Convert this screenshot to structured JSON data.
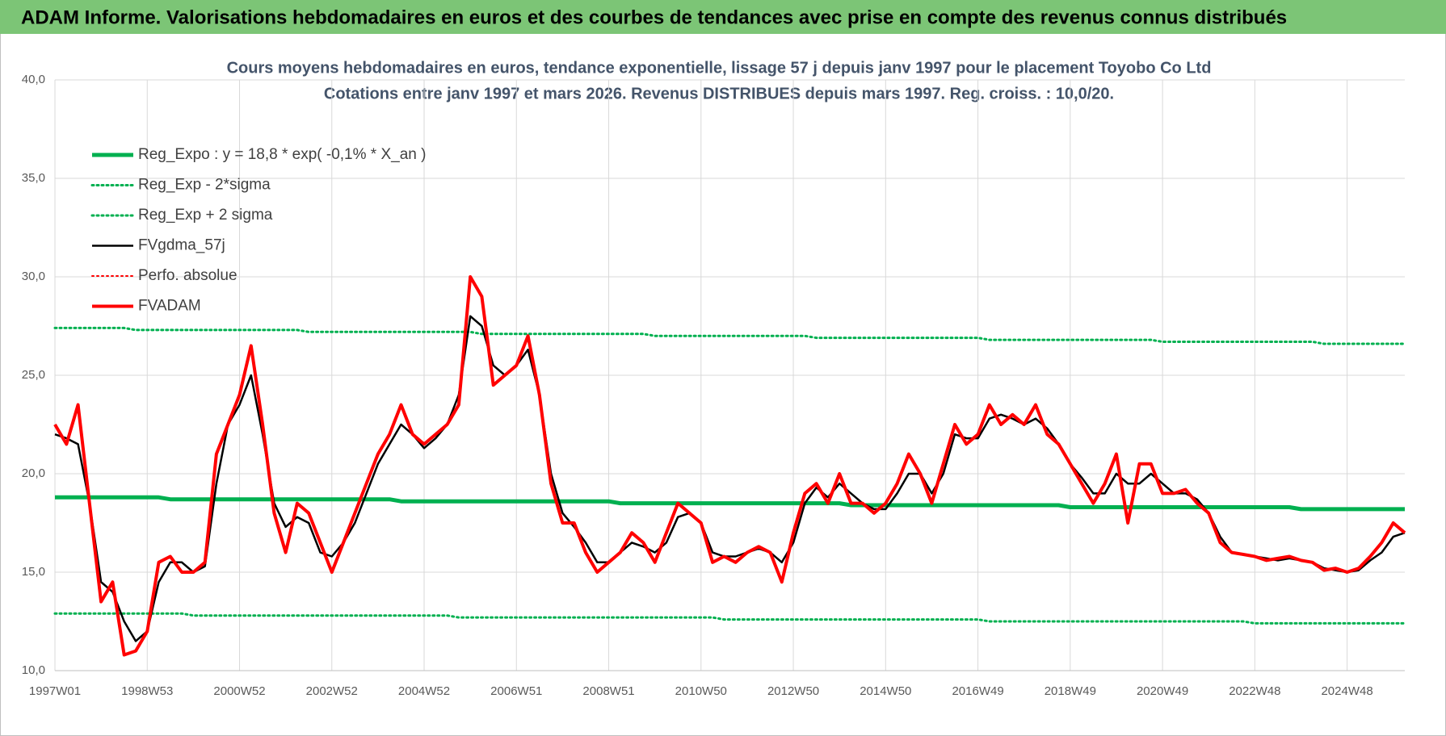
{
  "header": {
    "title": "ADAM Informe. Valorisations hebdomadaires en euros et des courbes de tendances avec prise en compte des revenus connus distribués"
  },
  "chart_data": {
    "type": "line",
    "title": "Cours moyens hebdomadaires en euros, tendance exponentielle, lissage 57 j depuis janv 1997  pour le placement Toyobo Co Ltd",
    "subtitle": "Cotations entre janv 1997 et mars 2026. Revenus DISTRIBUES depuis mars 1997. Reg. croiss. : 10,0/20.",
    "categories": [
      "1997W01",
      null,
      null,
      null,
      null,
      null,
      null,
      null,
      "1998W53",
      null,
      null,
      null,
      null,
      null,
      null,
      null,
      "2000W52",
      null,
      null,
      null,
      null,
      null,
      null,
      null,
      "2002W52",
      null,
      null,
      null,
      null,
      null,
      null,
      null,
      "2004W52",
      null,
      null,
      null,
      null,
      null,
      null,
      null,
      "2006W51",
      null,
      null,
      null,
      null,
      null,
      null,
      null,
      "2008W51",
      null,
      null,
      null,
      null,
      null,
      null,
      null,
      "2010W50",
      null,
      null,
      null,
      null,
      null,
      null,
      null,
      "2012W50",
      null,
      null,
      null,
      null,
      null,
      null,
      null,
      "2014W50",
      null,
      null,
      null,
      null,
      null,
      null,
      null,
      "2016W49",
      null,
      null,
      null,
      null,
      null,
      null,
      null,
      "2018W49",
      null,
      null,
      null,
      null,
      null,
      null,
      null,
      "2020W49",
      null,
      null,
      null,
      null,
      null,
      null,
      null,
      "2022W48",
      null,
      null,
      null,
      null,
      null,
      null,
      null,
      "2024W48",
      null,
      null,
      null,
      null,
      null
    ],
    "ylim": [
      10,
      40
    ],
    "yticks": [
      {
        "value": 10,
        "label": "10,0"
      },
      {
        "value": 15,
        "label": "15,0"
      },
      {
        "value": 20,
        "label": "20,0"
      },
      {
        "value": 25,
        "label": "25,0"
      },
      {
        "value": 30,
        "label": "30,0"
      },
      {
        "value": 35,
        "label": "35,0"
      },
      {
        "value": 40,
        "label": "40,0"
      }
    ],
    "grid": true,
    "legend": "upper left",
    "series": [
      {
        "name": "Reg_Expo : y = 18,8 * exp( -0,1% *  X_an )",
        "color": "#00b050",
        "width": 5,
        "dash": "solid",
        "values": [
          18.8,
          18.8,
          18.8,
          18.8,
          18.8,
          18.8,
          18.8,
          18.8,
          18.8,
          18.8,
          18.7,
          18.7,
          18.7,
          18.7,
          18.7,
          18.7,
          18.7,
          18.7,
          18.7,
          18.7,
          18.7,
          18.7,
          18.7,
          18.7,
          18.7,
          18.7,
          18.7,
          18.7,
          18.7,
          18.7,
          18.6,
          18.6,
          18.6,
          18.6,
          18.6,
          18.6,
          18.6,
          18.6,
          18.6,
          18.6,
          18.6,
          18.6,
          18.6,
          18.6,
          18.6,
          18.6,
          18.6,
          18.6,
          18.6,
          18.5,
          18.5,
          18.5,
          18.5,
          18.5,
          18.5,
          18.5,
          18.5,
          18.5,
          18.5,
          18.5,
          18.5,
          18.5,
          18.5,
          18.5,
          18.5,
          18.5,
          18.5,
          18.5,
          18.5,
          18.4,
          18.4,
          18.4,
          18.4,
          18.4,
          18.4,
          18.4,
          18.4,
          18.4,
          18.4,
          18.4,
          18.4,
          18.4,
          18.4,
          18.4,
          18.4,
          18.4,
          18.4,
          18.4,
          18.3,
          18.3,
          18.3,
          18.3,
          18.3,
          18.3,
          18.3,
          18.3,
          18.3,
          18.3,
          18.3,
          18.3,
          18.3,
          18.3,
          18.3,
          18.3,
          18.3,
          18.3,
          18.3,
          18.3,
          18.2,
          18.2,
          18.2,
          18.2,
          18.2,
          18.2,
          18.2,
          18.2,
          18.2,
          18.2
        ]
      },
      {
        "name": "Reg_Exp - 2*sigma",
        "color": "#00b050",
        "width": 3,
        "dash": "dotted",
        "values": [
          12.9,
          12.9,
          12.9,
          12.9,
          12.9,
          12.9,
          12.9,
          12.9,
          12.9,
          12.9,
          12.9,
          12.9,
          12.8,
          12.8,
          12.8,
          12.8,
          12.8,
          12.8,
          12.8,
          12.8,
          12.8,
          12.8,
          12.8,
          12.8,
          12.8,
          12.8,
          12.8,
          12.8,
          12.8,
          12.8,
          12.8,
          12.8,
          12.8,
          12.8,
          12.8,
          12.7,
          12.7,
          12.7,
          12.7,
          12.7,
          12.7,
          12.7,
          12.7,
          12.7,
          12.7,
          12.7,
          12.7,
          12.7,
          12.7,
          12.7,
          12.7,
          12.7,
          12.7,
          12.7,
          12.7,
          12.7,
          12.7,
          12.7,
          12.6,
          12.6,
          12.6,
          12.6,
          12.6,
          12.6,
          12.6,
          12.6,
          12.6,
          12.6,
          12.6,
          12.6,
          12.6,
          12.6,
          12.6,
          12.6,
          12.6,
          12.6,
          12.6,
          12.6,
          12.6,
          12.6,
          12.6,
          12.5,
          12.5,
          12.5,
          12.5,
          12.5,
          12.5,
          12.5,
          12.5,
          12.5,
          12.5,
          12.5,
          12.5,
          12.5,
          12.5,
          12.5,
          12.5,
          12.5,
          12.5,
          12.5,
          12.5,
          12.5,
          12.5,
          12.5,
          12.4,
          12.4,
          12.4,
          12.4,
          12.4,
          12.4,
          12.4,
          12.4,
          12.4,
          12.4,
          12.4,
          12.4,
          12.4,
          12.4
        ]
      },
      {
        "name": "Reg_Exp + 2 sigma",
        "color": "#00b050",
        "width": 3,
        "dash": "dotted",
        "values": [
          27.4,
          27.4,
          27.4,
          27.4,
          27.4,
          27.4,
          27.4,
          27.3,
          27.3,
          27.3,
          27.3,
          27.3,
          27.3,
          27.3,
          27.3,
          27.3,
          27.3,
          27.3,
          27.3,
          27.3,
          27.3,
          27.3,
          27.2,
          27.2,
          27.2,
          27.2,
          27.2,
          27.2,
          27.2,
          27.2,
          27.2,
          27.2,
          27.2,
          27.2,
          27.2,
          27.2,
          27.2,
          27.1,
          27.1,
          27.1,
          27.1,
          27.1,
          27.1,
          27.1,
          27.1,
          27.1,
          27.1,
          27.1,
          27.1,
          27.1,
          27.1,
          27.1,
          27.0,
          27.0,
          27.0,
          27.0,
          27.0,
          27.0,
          27.0,
          27.0,
          27.0,
          27.0,
          27.0,
          27.0,
          27.0,
          27.0,
          26.9,
          26.9,
          26.9,
          26.9,
          26.9,
          26.9,
          26.9,
          26.9,
          26.9,
          26.9,
          26.9,
          26.9,
          26.9,
          26.9,
          26.9,
          26.8,
          26.8,
          26.8,
          26.8,
          26.8,
          26.8,
          26.8,
          26.8,
          26.8,
          26.8,
          26.8,
          26.8,
          26.8,
          26.8,
          26.8,
          26.7,
          26.7,
          26.7,
          26.7,
          26.7,
          26.7,
          26.7,
          26.7,
          26.7,
          26.7,
          26.7,
          26.7,
          26.7,
          26.7,
          26.6,
          26.6,
          26.6,
          26.6,
          26.6,
          26.6,
          26.6,
          26.6
        ]
      },
      {
        "name": "FVgdma_57j",
        "color": "#000000",
        "width": 2.5,
        "dash": "solid",
        "values": [
          22,
          21.8,
          21.5,
          18.5,
          14.5,
          14.0,
          12.5,
          11.5,
          12.0,
          14.5,
          15.5,
          15.5,
          15.0,
          15.3,
          19.5,
          22.5,
          23.5,
          25.0,
          22.0,
          18.5,
          17.3,
          17.8,
          17.5,
          16.0,
          15.8,
          16.5,
          17.5,
          19.0,
          20.5,
          21.5,
          22.5,
          22.0,
          21.3,
          21.8,
          22.5,
          24.0,
          28.0,
          27.5,
          25.5,
          25.0,
          25.5,
          26.3,
          24.0,
          20.0,
          18.0,
          17.3,
          16.5,
          15.5,
          15.5,
          16.0,
          16.5,
          16.3,
          16.0,
          16.5,
          17.8,
          18.0,
          17.5,
          16.0,
          15.8,
          15.8,
          16.0,
          16.2,
          16.0,
          15.5,
          16.5,
          18.5,
          19.3,
          18.8,
          19.5,
          19.0,
          18.5,
          18.2,
          18.2,
          19.0,
          20.0,
          20.0,
          19.0,
          20.0,
          22.0,
          21.8,
          21.8,
          22.8,
          23.0,
          22.8,
          22.5,
          22.8,
          22.3,
          21.5,
          20.5,
          19.8,
          19.0,
          19.0,
          20.0,
          19.5,
          19.5,
          20.0,
          19.5,
          19.0,
          19.0,
          18.7,
          18.0,
          16.8,
          16.0,
          15.9,
          15.8,
          15.7,
          15.6,
          15.7,
          15.6,
          15.5,
          15.2,
          15.1,
          15.0,
          15.1,
          15.6,
          16.0,
          16.8,
          17.0
        ]
      },
      {
        "name": "Perfo. absolue",
        "color": "#ff0000",
        "width": 2,
        "dash": "dotted",
        "values": [
          null,
          null,
          null,
          null,
          null,
          null,
          null,
          null,
          null,
          null,
          null,
          null,
          null,
          null,
          null,
          null,
          null,
          null,
          null,
          null,
          null,
          null,
          null,
          null,
          null,
          null,
          null,
          null,
          null,
          null,
          null,
          null,
          null,
          null,
          null,
          null,
          null,
          null,
          null,
          null,
          null,
          null,
          null,
          null,
          null,
          null,
          null,
          null,
          null,
          null,
          null,
          null,
          null,
          null,
          null,
          null,
          null,
          null,
          null,
          null,
          null,
          null,
          null,
          null,
          null,
          null,
          null,
          null,
          null,
          null,
          null,
          null,
          null,
          null,
          null,
          null,
          null,
          null,
          null,
          null,
          null,
          null,
          null,
          null,
          null,
          null,
          null,
          null,
          null,
          null,
          null,
          null,
          null,
          null,
          null,
          null,
          null,
          null,
          null,
          null,
          null,
          null,
          null,
          null,
          null,
          null,
          null,
          null,
          null,
          null,
          null,
          null,
          null,
          null,
          null,
          null,
          null,
          null
        ]
      },
      {
        "name": "FVADAM",
        "color": "#ff0000",
        "width": 4,
        "dash": "solid",
        "values": [
          22.5,
          21.5,
          23.5,
          18.5,
          13.5,
          14.5,
          10.8,
          11.0,
          12.0,
          15.5,
          15.8,
          15.0,
          15.0,
          15.5,
          21.0,
          22.5,
          24.0,
          26.5,
          22.5,
          18.0,
          16.0,
          18.5,
          18.0,
          16.5,
          15.0,
          16.5,
          18.0,
          19.5,
          21.0,
          22.0,
          23.5,
          22.0,
          21.5,
          22.0,
          22.5,
          23.5,
          30.0,
          29.0,
          24.5,
          25.0,
          25.5,
          27.0,
          24.0,
          19.5,
          17.5,
          17.5,
          16.0,
          15.0,
          15.5,
          16.0,
          17.0,
          16.5,
          15.5,
          17.0,
          18.5,
          18.0,
          17.5,
          15.5,
          15.8,
          15.5,
          16.0,
          16.3,
          16.0,
          14.5,
          17.0,
          19.0,
          19.5,
          18.5,
          20.0,
          18.5,
          18.5,
          18.0,
          18.5,
          19.5,
          21.0,
          20.0,
          18.5,
          20.5,
          22.5,
          21.5,
          22.0,
          23.5,
          22.5,
          23.0,
          22.5,
          23.5,
          22.0,
          21.5,
          20.5,
          19.5,
          18.5,
          19.5,
          21.0,
          17.5,
          20.5,
          20.5,
          19.0,
          19.0,
          19.2,
          18.5,
          18.0,
          16.5,
          16.0,
          15.9,
          15.8,
          15.6,
          15.7,
          15.8,
          15.6,
          15.5,
          15.1,
          15.2,
          15.0,
          15.2,
          15.8,
          16.5,
          17.5,
          17.0
        ]
      }
    ]
  }
}
